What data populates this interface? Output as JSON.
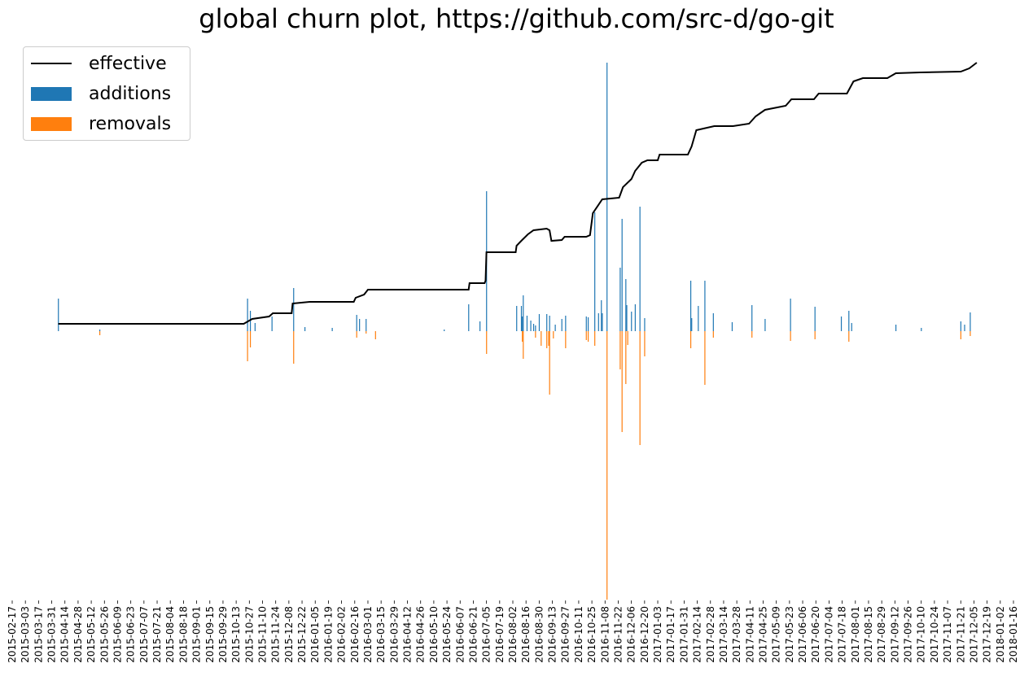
{
  "chart_data": {
    "type": "bar",
    "title": "global churn plot, https://github.com/src-d/go-git",
    "xlabel": "",
    "ylabel": "",
    "xlim": [
      "2015-02-17",
      "2018-01-16"
    ],
    "ylim": [
      -330,
      330
    ],
    "grid": false,
    "y_ticks_shown": false,
    "legend_placement": "top-left",
    "colors": {
      "effective": "#000000",
      "additions": "#1f77b4",
      "removals": "#ff7f0e"
    },
    "legend": [
      "effective",
      "additions",
      "removals"
    ],
    "x_ticks": [
      "2015-02-17",
      "2015-03-03",
      "2015-03-17",
      "2015-03-31",
      "2015-04-14",
      "2015-04-28",
      "2015-05-12",
      "2015-05-26",
      "2015-06-09",
      "2015-06-23",
      "2015-07-07",
      "2015-07-21",
      "2015-08-04",
      "2015-08-18",
      "2015-09-01",
      "2015-09-15",
      "2015-09-29",
      "2015-10-13",
      "2015-10-27",
      "2015-11-10",
      "2015-11-24",
      "2015-12-08",
      "2015-12-22",
      "2016-01-05",
      "2016-01-19",
      "2016-02-02",
      "2016-02-16",
      "2016-03-01",
      "2016-03-15",
      "2016-03-29",
      "2016-04-12",
      "2016-04-26",
      "2016-05-10",
      "2016-05-24",
      "2016-06-07",
      "2016-06-21",
      "2016-07-05",
      "2016-07-19",
      "2016-08-02",
      "2016-08-16",
      "2016-08-30",
      "2016-09-13",
      "2016-09-27",
      "2016-10-11",
      "2016-10-25",
      "2016-11-08",
      "2016-11-22",
      "2016-12-06",
      "2016-12-20",
      "2017-01-03",
      "2017-01-17",
      "2017-01-31",
      "2017-02-14",
      "2017-02-28",
      "2017-03-14",
      "2017-03-28",
      "2017-04-11",
      "2017-04-25",
      "2017-05-09",
      "2017-05-23",
      "2017-06-06",
      "2017-06-20",
      "2017-07-04",
      "2017-07-18",
      "2017-08-01",
      "2017-08-15",
      "2017-08-29",
      "2017-09-12",
      "2017-09-26",
      "2017-10-10",
      "2017-10-24",
      "2017-11-07",
      "2017-11-21",
      "2017-12-05",
      "2017-12-19",
      "2018-01-02",
      "2018-01-16"
    ],
    "series": [
      {
        "name": "effective",
        "type": "line",
        "points": [
          [
            "2015-04-07",
            9
          ],
          [
            "2015-10-21",
            9
          ],
          [
            "2015-10-30",
            15
          ],
          [
            "2015-11-17",
            18
          ],
          [
            "2015-11-21",
            22
          ],
          [
            "2015-12-11",
            22
          ],
          [
            "2015-12-12",
            34
          ],
          [
            "2015-12-30",
            36
          ],
          [
            "2016-02-15",
            36
          ],
          [
            "2016-02-17",
            41
          ],
          [
            "2016-02-26",
            45
          ],
          [
            "2016-03-01",
            51
          ],
          [
            "2016-06-16",
            51
          ],
          [
            "2016-06-17",
            59
          ],
          [
            "2016-07-03",
            59
          ],
          [
            "2016-07-04",
            62
          ],
          [
            "2016-07-05",
            97
          ],
          [
            "2016-08-05",
            97
          ],
          [
            "2016-08-06",
            105
          ],
          [
            "2016-08-11",
            111
          ],
          [
            "2016-08-18",
            119
          ],
          [
            "2016-08-24",
            124
          ],
          [
            "2016-09-07",
            126
          ],
          [
            "2016-09-10",
            124
          ],
          [
            "2016-09-12",
            111
          ],
          [
            "2016-09-23",
            112
          ],
          [
            "2016-09-26",
            116
          ],
          [
            "2016-10-19",
            116
          ],
          [
            "2016-10-23",
            118
          ],
          [
            "2016-10-26",
            145
          ],
          [
            "2016-11-05",
            162
          ],
          [
            "2016-11-23",
            164
          ],
          [
            "2016-11-27",
            177
          ],
          [
            "2016-12-06",
            187
          ],
          [
            "2016-12-10",
            197
          ],
          [
            "2016-12-17",
            207
          ],
          [
            "2016-12-23",
            210
          ],
          [
            "2017-01-03",
            210
          ],
          [
            "2017-01-05",
            217
          ],
          [
            "2017-02-04",
            217
          ],
          [
            "2017-02-08",
            227
          ],
          [
            "2017-02-13",
            247
          ],
          [
            "2017-03-04",
            252
          ],
          [
            "2017-03-24",
            252
          ],
          [
            "2017-04-10",
            255
          ],
          [
            "2017-04-17",
            264
          ],
          [
            "2017-04-27",
            272
          ],
          [
            "2017-05-19",
            277
          ],
          [
            "2017-05-25",
            285
          ],
          [
            "2017-06-18",
            285
          ],
          [
            "2017-06-23",
            292
          ],
          [
            "2017-07-23",
            292
          ],
          [
            "2017-07-30",
            307
          ],
          [
            "2017-08-09",
            311
          ],
          [
            "2017-09-04",
            311
          ],
          [
            "2017-09-13",
            317
          ],
          [
            "2017-10-09",
            318
          ],
          [
            "2017-11-21",
            319
          ],
          [
            "2017-11-30",
            323
          ],
          [
            "2017-12-08",
            330
          ]
        ]
      },
      {
        "name": "additions",
        "type": "bar",
        "points": [
          [
            "2015-04-07",
            40
          ],
          [
            "2015-05-21",
            2
          ],
          [
            "2015-10-25",
            40
          ],
          [
            "2015-10-28",
            25
          ],
          [
            "2015-11-02",
            10
          ],
          [
            "2015-11-20",
            18
          ],
          [
            "2015-12-13",
            53
          ],
          [
            "2015-12-25",
            5
          ],
          [
            "2016-01-23",
            4
          ],
          [
            "2016-02-18",
            20
          ],
          [
            "2016-02-21",
            15
          ],
          [
            "2016-02-28",
            15
          ],
          [
            "2016-05-21",
            2
          ],
          [
            "2016-06-16",
            33
          ],
          [
            "2016-06-28",
            12
          ],
          [
            "2016-07-05",
            172
          ],
          [
            "2016-08-06",
            31
          ],
          [
            "2016-08-11",
            31
          ],
          [
            "2016-08-12",
            18
          ],
          [
            "2016-08-13",
            44
          ],
          [
            "2016-08-17",
            19
          ],
          [
            "2016-08-21",
            13
          ],
          [
            "2016-08-24",
            9
          ],
          [
            "2016-08-26",
            7
          ],
          [
            "2016-08-30",
            21
          ],
          [
            "2016-09-07",
            21
          ],
          [
            "2016-09-10",
            19
          ],
          [
            "2016-09-16",
            8
          ],
          [
            "2016-09-23",
            15
          ],
          [
            "2016-09-27",
            19
          ],
          [
            "2016-10-19",
            18
          ],
          [
            "2016-10-21",
            17
          ],
          [
            "2016-10-28",
            146
          ],
          [
            "2016-11-01",
            22
          ],
          [
            "2016-11-04",
            38
          ],
          [
            "2016-11-05",
            22
          ],
          [
            "2016-11-10",
            330
          ],
          [
            "2016-11-24",
            78
          ],
          [
            "2016-11-26",
            138
          ],
          [
            "2016-11-30",
            64
          ],
          [
            "2016-12-01",
            32
          ],
          [
            "2016-12-06",
            24
          ],
          [
            "2016-12-10",
            33
          ],
          [
            "2016-12-15",
            153
          ],
          [
            "2016-12-20",
            16
          ],
          [
            "2017-02-07",
            62
          ],
          [
            "2017-02-08",
            16
          ],
          [
            "2017-02-15",
            31
          ],
          [
            "2017-02-22",
            62
          ],
          [
            "2017-03-03",
            22
          ],
          [
            "2017-03-23",
            11
          ],
          [
            "2017-04-13",
            32
          ],
          [
            "2017-04-27",
            15
          ],
          [
            "2017-05-24",
            40
          ],
          [
            "2017-06-19",
            30
          ],
          [
            "2017-07-17",
            18
          ],
          [
            "2017-07-25",
            25
          ],
          [
            "2017-07-28",
            10
          ],
          [
            "2017-09-13",
            8
          ],
          [
            "2017-10-10",
            4
          ],
          [
            "2017-11-21",
            12
          ],
          [
            "2017-11-25",
            8
          ],
          [
            "2017-12-01",
            23
          ]
        ]
      },
      {
        "name": "removals",
        "type": "bar",
        "points": [
          [
            "2015-05-21",
            5
          ],
          [
            "2015-10-25",
            37
          ],
          [
            "2015-10-28",
            20
          ],
          [
            "2015-12-13",
            40
          ],
          [
            "2016-02-18",
            8
          ],
          [
            "2016-02-28",
            3
          ],
          [
            "2016-03-09",
            10
          ],
          [
            "2016-07-05",
            28
          ],
          [
            "2016-08-12",
            13
          ],
          [
            "2016-08-13",
            34
          ],
          [
            "2016-08-26",
            8
          ],
          [
            "2016-09-01",
            18
          ],
          [
            "2016-09-07",
            21
          ],
          [
            "2016-09-09",
            18
          ],
          [
            "2016-09-10",
            78
          ],
          [
            "2016-09-14",
            9
          ],
          [
            "2016-09-27",
            21
          ],
          [
            "2016-10-19",
            11
          ],
          [
            "2016-10-21",
            13
          ],
          [
            "2016-10-28",
            18
          ],
          [
            "2016-11-10",
            330
          ],
          [
            "2016-11-24",
            47
          ],
          [
            "2016-11-26",
            124
          ],
          [
            "2016-11-30",
            65
          ],
          [
            "2016-12-02",
            17
          ],
          [
            "2016-12-15",
            140
          ],
          [
            "2016-12-20",
            31
          ],
          [
            "2017-02-07",
            21
          ],
          [
            "2017-02-22",
            66
          ],
          [
            "2017-03-03",
            8
          ],
          [
            "2017-04-13",
            8
          ],
          [
            "2017-05-24",
            12
          ],
          [
            "2017-06-19",
            10
          ],
          [
            "2017-07-25",
            13
          ],
          [
            "2017-11-21",
            10
          ],
          [
            "2017-12-01",
            6
          ]
        ]
      }
    ]
  }
}
